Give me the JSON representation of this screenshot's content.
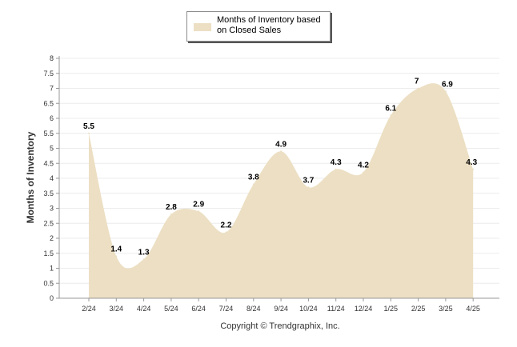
{
  "legend": {
    "label": "Months of Inventory based on Closed Sales",
    "color": "#ecdfc3"
  },
  "ylabel": "Months of Inventory",
  "copyright": "Copyright © Trendgraphix, Inc.",
  "chart_data": {
    "type": "area",
    "categories": [
      "2/24",
      "3/24",
      "4/24",
      "5/24",
      "6/24",
      "7/24",
      "8/24",
      "9/24",
      "10/24",
      "11/24",
      "12/24",
      "1/25",
      "2/25",
      "3/25",
      "4/25"
    ],
    "series": [
      {
        "name": "Months of Inventory based on Closed Sales",
        "values": [
          5.5,
          1.4,
          1.3,
          2.8,
          2.9,
          2.2,
          3.8,
          4.9,
          3.7,
          4.3,
          4.2,
          6.1,
          7,
          6.9,
          4.3
        ],
        "color": "#ecdfc3"
      }
    ],
    "yticks": [
      "0",
      "0.5",
      "1",
      "1.5",
      "2",
      "2.5",
      "3",
      "3.5",
      "4",
      "4.5",
      "5",
      "5.5",
      "6",
      "6.5",
      "7",
      "7.5",
      "8"
    ],
    "ylabel": "Months of Inventory",
    "ylim": [
      0,
      8
    ],
    "grid": true,
    "legend_position": "top-center"
  }
}
